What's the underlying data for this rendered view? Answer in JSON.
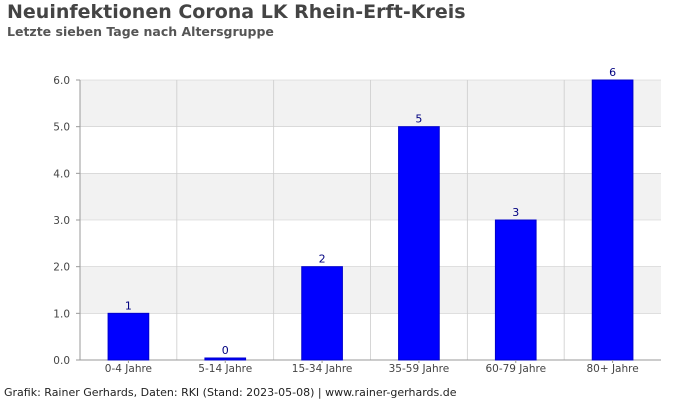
{
  "title": "Neuinfektionen Corona LK Rhein-Erft-Kreis",
  "subtitle": "Letzte sieben Tage nach Altersgruppe",
  "footer": "Grafik: Rainer Gerhards, Daten: RKI (Stand: 2023-05-08) | www.rainer-gerhards.de",
  "colors": {
    "bar": "#0000ff",
    "value_label": "#000080",
    "band": "#f2f2f2",
    "grid": "#cccccc",
    "axis": "#999999",
    "tick_label": "#444444"
  },
  "chart_data": {
    "type": "bar",
    "categories": [
      "0-4 Jahre",
      "5-14 Jahre",
      "15-34 Jahre",
      "35-59 Jahre",
      "60-79 Jahre",
      "80+ Jahre"
    ],
    "values": [
      1,
      0,
      2,
      5,
      3,
      6
    ],
    "value_labels": [
      "1",
      "0",
      "2",
      "5",
      "3",
      "6"
    ],
    "yticks": [
      "0.0",
      "1.0",
      "2.0",
      "3.0",
      "4.0",
      "5.0",
      "6.0"
    ],
    "ylim": [
      0,
      6
    ],
    "xlabel": "",
    "ylabel": "",
    "grid": true,
    "legend": "none"
  }
}
